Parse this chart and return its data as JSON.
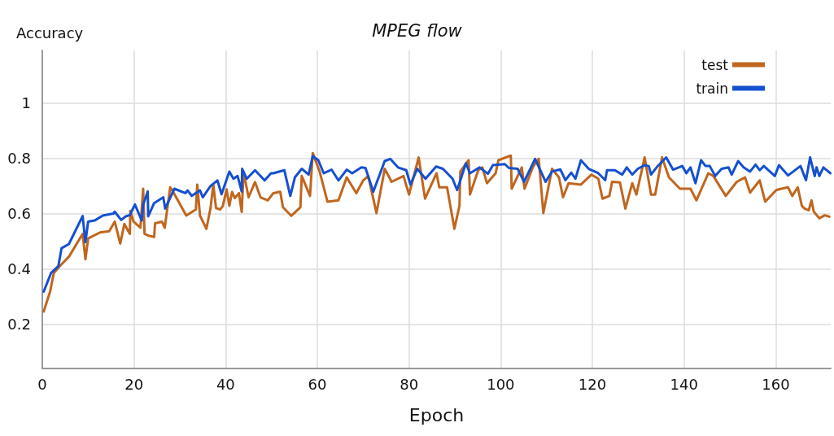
{
  "chart_data": {
    "type": "line",
    "title": "MPEG flow",
    "xlabel": "Epoch",
    "ylabel": "Accuracy",
    "xlim": [
      0,
      172
    ],
    "xticks": [
      0,
      20,
      40,
      60,
      80,
      100,
      120,
      140,
      160
    ],
    "ylim": [
      0.04,
      1.19
    ],
    "yticks": [
      0.2,
      0.4,
      0.6,
      0.8,
      1
    ],
    "grid": true,
    "legend": "top right",
    "marker": "none",
    "line_style": "solid",
    "series": [
      {
        "name": "test",
        "color": "#c0661e",
        "x": [
          0.3,
          1.7,
          2.5,
          3.8,
          5.8,
          8.8,
          9.4,
          10,
          12.6,
          14.6,
          15.8,
          17,
          17.9,
          19.1,
          19.2,
          19.9,
          21.4,
          22,
          22.3,
          23.2,
          24.4,
          24.6,
          26.1,
          26.7,
          27.9,
          28.5,
          31.4,
          33.5,
          33.8,
          34.4,
          35.8,
          36.7,
          37.3,
          37.9,
          38.8,
          39.4,
          40.2,
          40.8,
          41.4,
          42,
          42.9,
          43.5,
          43.9,
          45,
          46.4,
          47.6,
          49.2,
          50.4,
          51.9,
          52.5,
          54.3,
          56.3,
          56.6,
          58.4,
          59,
          60.5,
          62.2,
          64.6,
          66.4,
          68.5,
          70,
          71.1,
          72.9,
          74.7,
          76.2,
          78.8,
          80,
          82.1,
          83.5,
          86,
          86.6,
          88.3,
          89.9,
          91,
          91.2,
          93,
          93.3,
          95.1,
          96,
          97,
          98.9,
          99.5,
          102.2,
          102.4,
          104.6,
          105.2,
          107,
          107.8,
          108.3,
          109.3,
          111.2,
          112.7,
          113.6,
          114.8,
          117.5,
          119.8,
          121.3,
          122.2,
          123.7,
          124.3,
          126,
          127.2,
          128.7,
          129.6,
          131.4,
          132.8,
          133.7,
          135.2,
          136.7,
          139.1,
          141.4,
          142.7,
          145.3,
          146.4,
          149.1,
          151.5,
          153.3,
          154.4,
          156.5,
          157.7,
          160.1,
          161.2,
          162.7,
          163.6,
          164.8,
          165.7,
          166.3,
          167.2,
          167.8,
          168.3,
          169.5,
          170.7,
          171.7
        ],
        "values": [
          0.246,
          0.318,
          0.385,
          0.41,
          0.444,
          0.527,
          0.435,
          0.51,
          0.532,
          0.536,
          0.571,
          0.492,
          0.562,
          0.527,
          0.61,
          0.571,
          0.549,
          0.69,
          0.527,
          0.52,
          0.516,
          0.565,
          0.571,
          0.549,
          0.695,
          0.68,
          0.593,
          0.615,
          0.705,
          0.593,
          0.545,
          0.62,
          0.705,
          0.62,
          0.615,
          0.628,
          0.688,
          0.628,
          0.678,
          0.656,
          0.674,
          0.606,
          0.75,
          0.659,
          0.714,
          0.659,
          0.648,
          0.674,
          0.679,
          0.623,
          0.592,
          0.623,
          0.736,
          0.664,
          0.819,
          0.752,
          0.643,
          0.648,
          0.731,
          0.674,
          0.72,
          0.736,
          0.602,
          0.762,
          0.715,
          0.736,
          0.669,
          0.803,
          0.654,
          0.746,
          0.695,
          0.695,
          0.545,
          0.628,
          0.752,
          0.793,
          0.669,
          0.757,
          0.767,
          0.71,
          0.746,
          0.793,
          0.81,
          0.69,
          0.767,
          0.69,
          0.767,
          0.788,
          0.798,
          0.602,
          0.762,
          0.731,
          0.659,
          0.71,
          0.705,
          0.741,
          0.726,
          0.654,
          0.664,
          0.715,
          0.713,
          0.618,
          0.71,
          0.669,
          0.803,
          0.669,
          0.669,
          0.803,
          0.731,
          0.69,
          0.69,
          0.648,
          0.746,
          0.736,
          0.664,
          0.715,
          0.731,
          0.676,
          0.72,
          0.643,
          0.685,
          0.69,
          0.695,
          0.664,
          0.695,
          0.628,
          0.618,
          0.612,
          0.648,
          0.607,
          0.583,
          0.594,
          0.589
        ]
      },
      {
        "name": "train",
        "color": "#1450d0",
        "x": [
          0.3,
          1.9,
          3.5,
          4.2,
          5.8,
          8.8,
          9.4,
          10,
          11.4,
          13.2,
          15.5,
          15.8,
          17.2,
          18.2,
          19.1,
          20.2,
          21.7,
          22,
          23,
          23.1,
          24.4,
          26.4,
          26.8,
          28.8,
          31.2,
          31.7,
          32.6,
          34.4,
          35,
          36.7,
          38.2,
          39.1,
          40.8,
          41.7,
          42.6,
          43.5,
          43.6,
          44.6,
          46.4,
          48.5,
          49.9,
          50.4,
          52.8,
          54.1,
          55.1,
          56.6,
          58.1,
          59,
          60.2,
          61.4,
          63.1,
          64.6,
          66.4,
          67.6,
          69.6,
          70.5,
          72.2,
          74.7,
          75.9,
          77.6,
          79.4,
          80.3,
          81.8,
          83.6,
          85.9,
          87.4,
          89.5,
          90.5,
          92.4,
          93.3,
          95.4,
          97.2,
          98.3,
          100.9,
          101.8,
          103.7,
          105.1,
          107.5,
          109.8,
          111.2,
          113,
          114.1,
          115.4,
          116.3,
          117.5,
          119.2,
          121.3,
          122.8,
          123.2,
          124.9,
          126.5,
          127.5,
          128.7,
          129.9,
          131.4,
          132.3,
          132.8,
          134,
          136.1,
          137.6,
          139.6,
          140.5,
          141.4,
          142.5,
          143.7,
          144.7,
          145.6,
          146.8,
          148.2,
          149.7,
          150.4,
          151.8,
          153,
          154.4,
          155.6,
          156.5,
          157.4,
          159.8,
          160.7,
          162.7,
          165.4,
          166.6,
          167.5,
          168.5,
          168.9,
          169.5,
          170.4,
          171.9
        ],
        "values": [
          0.318,
          0.385,
          0.41,
          0.475,
          0.49,
          0.591,
          0.497,
          0.571,
          0.575,
          0.593,
          0.6,
          0.607,
          0.577,
          0.59,
          0.595,
          0.633,
          0.575,
          0.633,
          0.68,
          0.59,
          0.638,
          0.659,
          0.618,
          0.69,
          0.674,
          0.684,
          0.664,
          0.684,
          0.659,
          0.7,
          0.72,
          0.67,
          0.752,
          0.726,
          0.736,
          0.68,
          0.762,
          0.726,
          0.757,
          0.72,
          0.746,
          0.746,
          0.757,
          0.664,
          0.731,
          0.762,
          0.741,
          0.808,
          0.793,
          0.746,
          0.759,
          0.72,
          0.759,
          0.746,
          0.767,
          0.765,
          0.679,
          0.79,
          0.798,
          0.767,
          0.757,
          0.705,
          0.762,
          0.726,
          0.77,
          0.762,
          0.726,
          0.685,
          0.782,
          0.746,
          0.767,
          0.744,
          0.775,
          0.779,
          0.765,
          0.762,
          0.715,
          0.798,
          0.715,
          0.752,
          0.76,
          0.721,
          0.748,
          0.726,
          0.793,
          0.762,
          0.746,
          0.721,
          0.757,
          0.757,
          0.741,
          0.767,
          0.741,
          0.762,
          0.775,
          0.772,
          0.741,
          0.767,
          0.803,
          0.759,
          0.772,
          0.746,
          0.767,
          0.71,
          0.793,
          0.772,
          0.772,
          0.736,
          0.762,
          0.767,
          0.741,
          0.79,
          0.767,
          0.752,
          0.777,
          0.757,
          0.772,
          0.736,
          0.775,
          0.738,
          0.772,
          0.721,
          0.803,
          0.736,
          0.767,
          0.736,
          0.767,
          0.746
        ]
      }
    ]
  }
}
